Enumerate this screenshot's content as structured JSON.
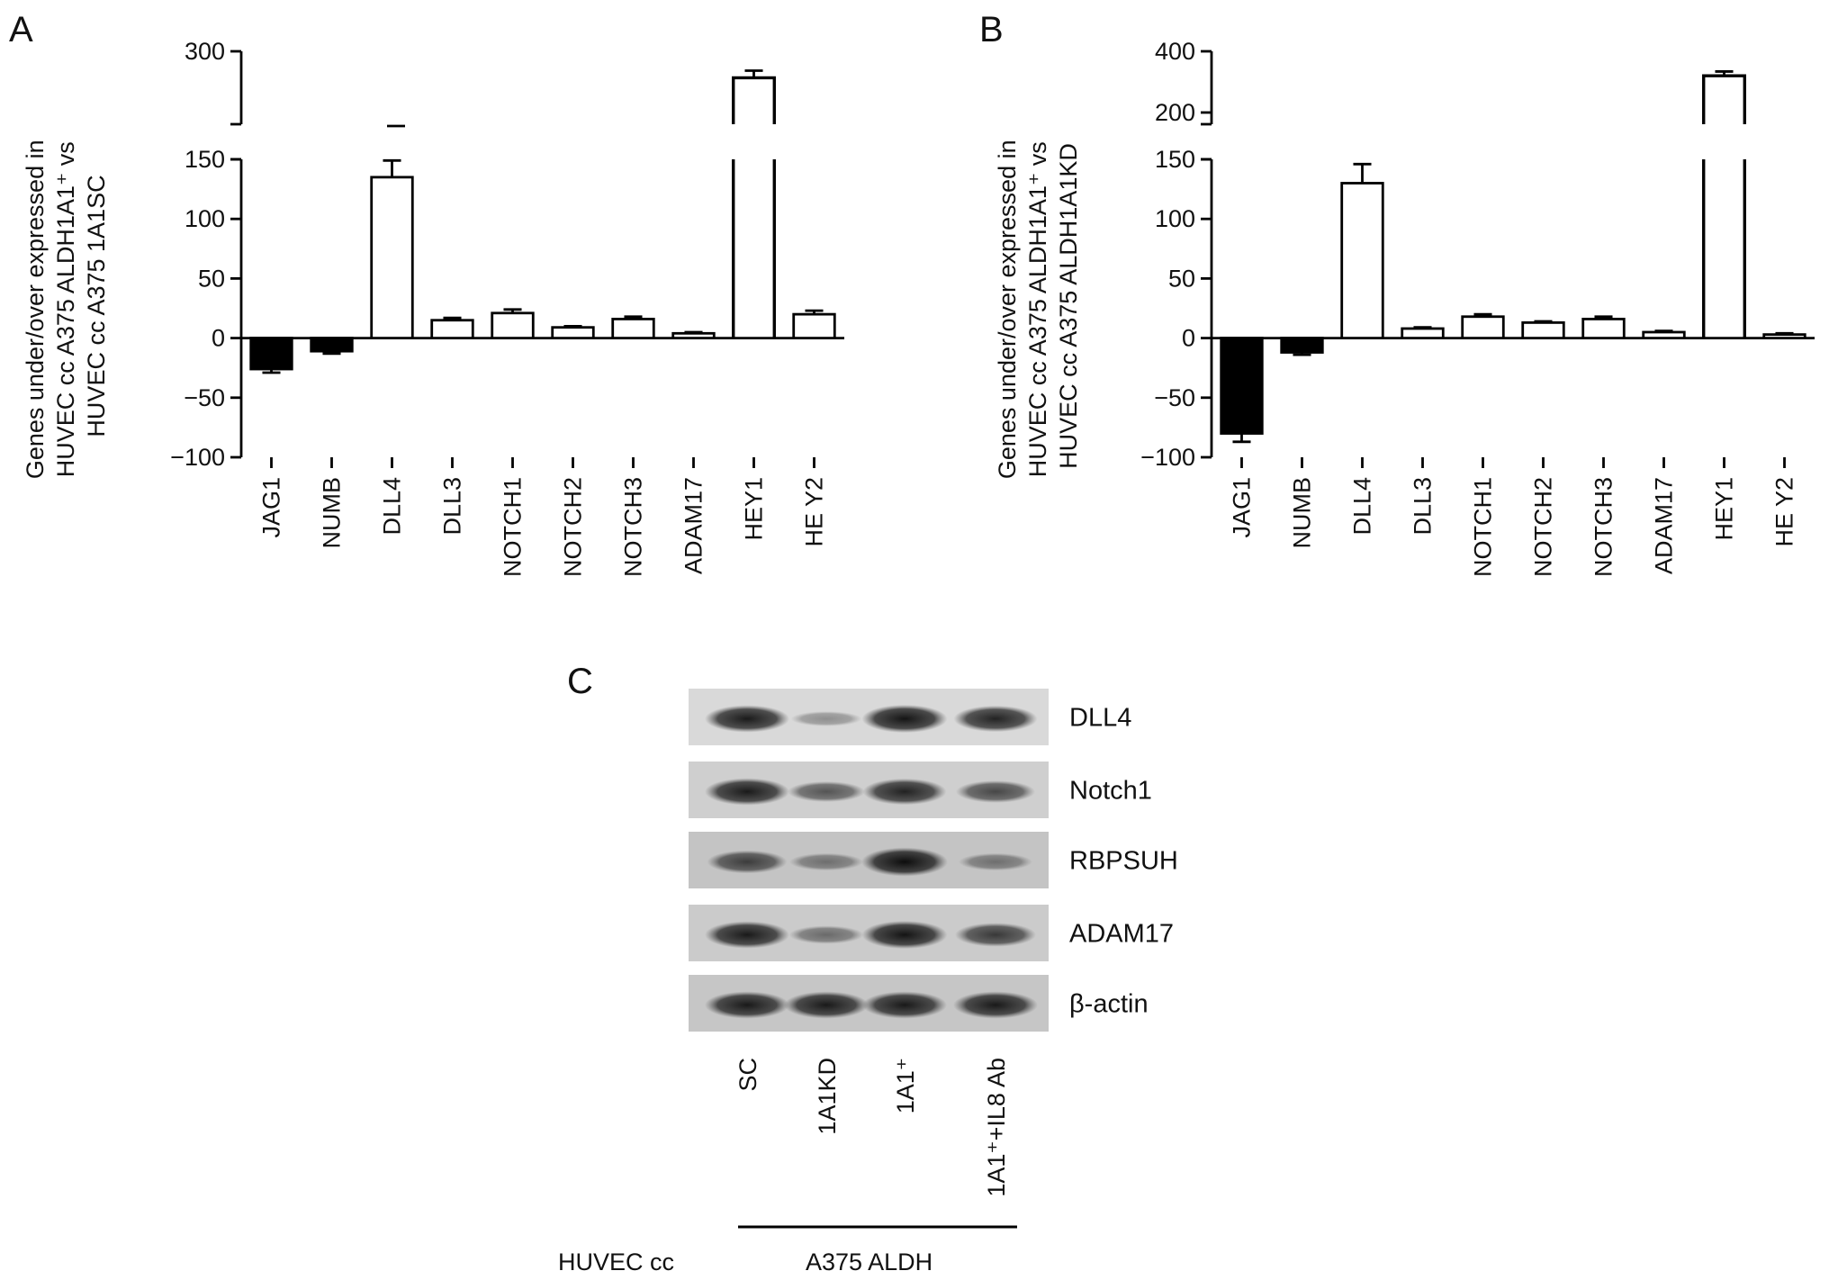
{
  "colors": {
    "under": "#000000",
    "over": "#ffffff",
    "stroke": "#000000"
  },
  "chart_data": [
    {
      "panel": "A",
      "type": "bar",
      "ylabel": [
        "Genes under/over expressed in",
        "HUVEC cc A375 ALDH1A1⁺ vs",
        "HUVEC cc A375 1A1SC"
      ],
      "categories": [
        "JAG1",
        "NUMB",
        "DLL4",
        "DLL3",
        "NOTCH1",
        "NOTCH2",
        "NOTCH3",
        "ADAM17",
        "HEY1",
        "HE Y2"
      ],
      "values": [
        -26,
        -11,
        135,
        15,
        21,
        9,
        16,
        4,
        248,
        20
      ],
      "errors": [
        3,
        2,
        14,
        2,
        3,
        1,
        2,
        1,
        14,
        3
      ],
      "ylim_lower": [
        -100,
        150
      ],
      "ylim_upper": [
        150,
        300
      ],
      "yticks_lower": [
        "−100",
        "−50",
        "0",
        "50",
        "100",
        "150"
      ],
      "yticks_upper": [
        "300"
      ],
      "axis_break": true
    },
    {
      "panel": "B",
      "type": "bar",
      "ylabel": [
        "Genes under/over expressed in",
        "HUVEC cc A375 ALDH1A1⁺ vs",
        "HUVEC cc A375 ALDH1A1KD"
      ],
      "categories": [
        "JAG1",
        "NUMB",
        "DLL4",
        "DLL3",
        "NOTCH1",
        "NOTCH2",
        "NOTCH3",
        "ADAM17",
        "HEY1",
        "HE Y2"
      ],
      "values": [
        -80,
        -12,
        130,
        8,
        18,
        13,
        16,
        5,
        320,
        3
      ],
      "errors": [
        7,
        2,
        16,
        1,
        2,
        1,
        2,
        1,
        14,
        1
      ],
      "ylim_lower": [
        -100,
        150
      ],
      "ylim_upper": [
        150,
        400
      ],
      "yticks_lower": [
        "−100",
        "−50",
        "0",
        "50",
        "100",
        "150"
      ],
      "yticks_upper": [
        "200",
        "400"
      ],
      "axis_break": true
    }
  ],
  "panels": {
    "a": "A",
    "b": "B",
    "c": "C"
  },
  "blot": {
    "rows": [
      {
        "label": "DLL4",
        "intensity": [
          0.9,
          0.15,
          0.95,
          0.85
        ]
      },
      {
        "label": "Notch1",
        "intensity": [
          0.9,
          0.5,
          0.85,
          0.6
        ]
      },
      {
        "label": "RBPSUH",
        "intensity": [
          0.65,
          0.3,
          1.0,
          0.3
        ]
      },
      {
        "label": "ADAM17",
        "intensity": [
          0.9,
          0.35,
          0.95,
          0.7
        ]
      },
      {
        "label": "β-actin",
        "intensity": [
          0.9,
          0.9,
          0.9,
          0.9
        ]
      }
    ],
    "lanes": [
      "SC",
      "1A1KD",
      "1A1⁺",
      "1A1⁺+IL8 Ab"
    ],
    "group_left": "HUVEC cc",
    "group_right": "A375 ALDH"
  }
}
